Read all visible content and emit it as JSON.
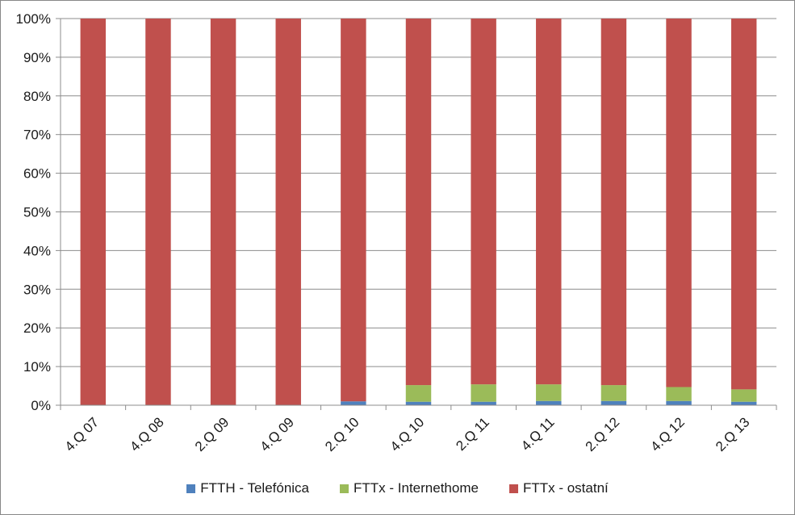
{
  "chart_data": {
    "type": "bar",
    "stacked": true,
    "percent_stacked": true,
    "categories": [
      "4.Q 07",
      "4.Q 08",
      "2.Q 09",
      "4.Q 09",
      "2.Q 10",
      "4.Q 10",
      "2.Q 11",
      "4.Q 11",
      "2.Q 12",
      "4.Q 12",
      "2.Q 13"
    ],
    "series": [
      {
        "name": "FTTH - Telefónica",
        "color": "#4f81bd",
        "values": [
          0,
          0,
          0,
          0,
          1.0,
          0.9,
          0.9,
          1.1,
          1.1,
          1.1,
          0.9
        ]
      },
      {
        "name": "FTTx - Internethome",
        "color": "#9bbb59",
        "values": [
          0,
          0,
          0,
          0,
          0,
          4.3,
          4.5,
          4.3,
          4.1,
          3.6,
          3.2
        ]
      },
      {
        "name": "FTTx - ostatní",
        "color": "#c0504d",
        "values": [
          100,
          100,
          100,
          100,
          99.0,
          94.8,
          94.6,
          94.6,
          94.8,
          95.3,
          95.9
        ]
      }
    ],
    "yticks": [
      "0%",
      "10%",
      "20%",
      "30%",
      "40%",
      "50%",
      "60%",
      "70%",
      "80%",
      "90%",
      "100%"
    ],
    "ylim": [
      0,
      100
    ],
    "grid": true,
    "legend_position": "bottom",
    "title": "",
    "xlabel": "",
    "ylabel": ""
  }
}
